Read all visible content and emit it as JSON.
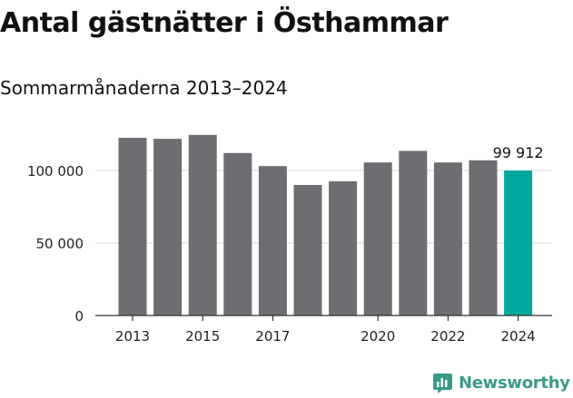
{
  "header": {
    "title": "Antal gästnätter i Östhammar",
    "subtitle": "Sommarmånaderna 2013–2024"
  },
  "brand": {
    "name": "Newsworthy",
    "color": "#3a9a88",
    "icon": "bar-chart-speech-bubble-icon"
  },
  "chart_data": {
    "type": "bar",
    "title": "Antal gästnätter i Östhammar",
    "subtitle": "Sommarmånaderna 2013–2024",
    "xlabel": "",
    "ylabel": "",
    "categories": [
      "2013",
      "2014",
      "2015",
      "2016",
      "2017",
      "2018",
      "2019",
      "2020",
      "2021",
      "2022",
      "2023",
      "2024"
    ],
    "values": [
      122500,
      121800,
      124500,
      112000,
      103000,
      90000,
      92500,
      105500,
      113500,
      105500,
      107000,
      99912
    ],
    "x_tick_labels": [
      "2013",
      "2015",
      "2017",
      "2020",
      "2022",
      "2024"
    ],
    "y_ticks": [
      0,
      50000,
      100000
    ],
    "y_tick_labels": [
      "0",
      "50 000",
      "100 000"
    ],
    "ylim": [
      0,
      130000
    ],
    "grid": true,
    "annotations": [
      {
        "category": "2024",
        "text": "99 912"
      }
    ],
    "colors": {
      "default": "#6d6d72",
      "highlight": "#00a79c",
      "grid": "#d9d9d9",
      "axis": "#333333"
    },
    "highlight_category": "2024"
  }
}
